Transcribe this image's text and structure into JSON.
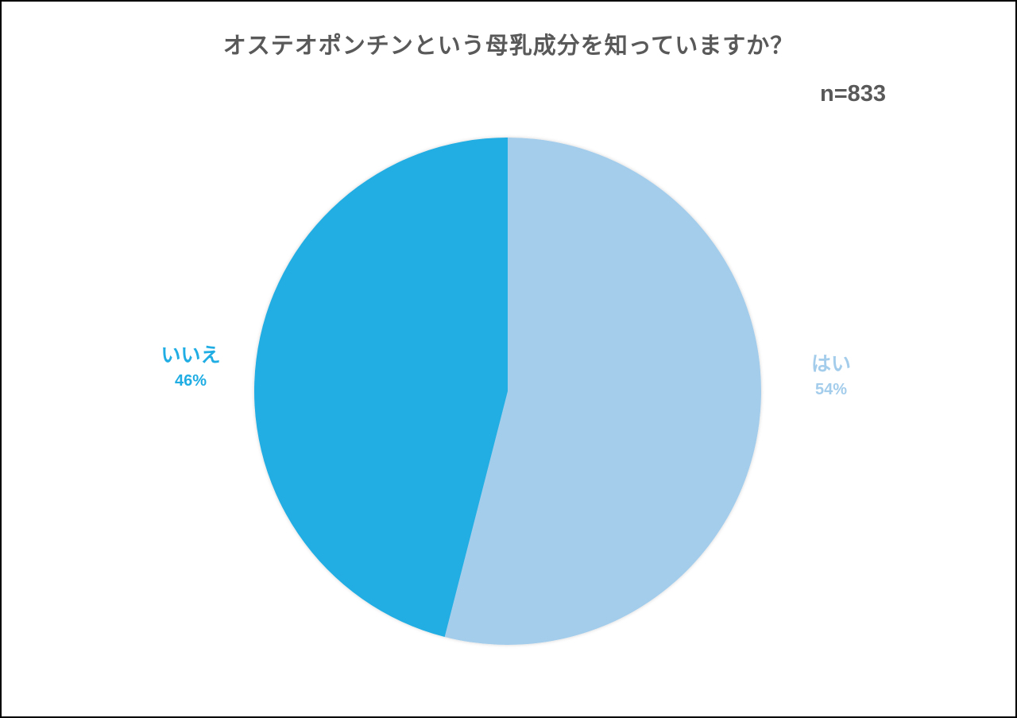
{
  "chart_data": {
    "type": "pie",
    "title": "オステオポンチンという母乳成分を知っていますか？",
    "sample_size": "n=833",
    "slices": [
      {
        "label": "はい",
        "value": 54,
        "value_label": "54%",
        "color": "#a4cdec"
      },
      {
        "label": "いいえ",
        "value": 46,
        "value_label": "46%",
        "color": "#20ade3"
      }
    ],
    "start_angle_deg": 0,
    "direction": "clockwise",
    "legend": "none"
  }
}
